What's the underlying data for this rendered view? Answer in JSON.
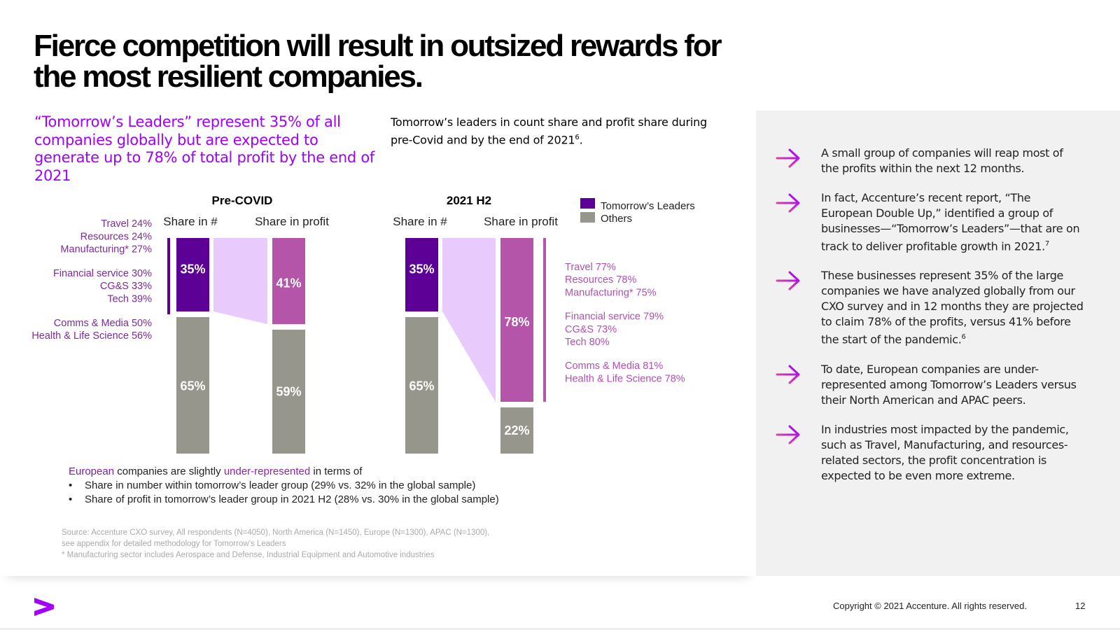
{
  "title": "Fierce competition will result in outsized rewards for the most resilient companies.",
  "headline": "“Tomorrow’s Leaders” represent 35% of all companies globally but are expected to generate up to 78% of total profit by the end of 2021",
  "chart_caption": {
    "text": "Tomorrow’s leaders in count share and profit share during pre-Covid and by the end of 2021",
    "footnote": "6",
    "suffix": "."
  },
  "colors": {
    "leaders": "#5c0096",
    "others": "#96968c",
    "profit_leaders": "#b455aa",
    "flow": "#e8cbfc",
    "accent": "#a100ff",
    "label_purple": "#7b2b9a",
    "label_pink": "#b050b0"
  },
  "chart_data": {
    "type": "bar",
    "subtype": "stacked-100-percent-with-flow",
    "legend": {
      "position": "top-right",
      "entries": [
        "Tomorrow’s Leaders",
        "Others"
      ]
    },
    "groups": [
      {
        "title": "Pre-COVID",
        "categories": [
          "Share in #",
          "Share in profit"
        ],
        "series": [
          {
            "name": "Tomorrow’s Leaders",
            "values": [
              35,
              41
            ],
            "labels": [
              "35%",
              "41%"
            ]
          },
          {
            "name": "Others",
            "values": [
              65,
              59
            ],
            "labels": [
              "65%",
              "59%"
            ]
          }
        ],
        "industry_breakdown": [
          [
            "Travel 24%",
            "Resources 24%",
            "Manufacturing* 27%"
          ],
          [
            "Financial service 30%",
            "CG&S 33%",
            "Tech 39%"
          ],
          [
            "Comms & Media 50%",
            "Health & Life Science 56%"
          ]
        ]
      },
      {
        "title": "2021 H2",
        "categories": [
          "Share in #",
          "Share in profit"
        ],
        "series": [
          {
            "name": "Tomorrow’s Leaders",
            "values": [
              35,
              78
            ],
            "labels": [
              "35%",
              "78%"
            ]
          },
          {
            "name": "Others",
            "values": [
              65,
              22
            ],
            "labels": [
              "65%",
              "22%"
            ]
          }
        ],
        "industry_breakdown": [
          [
            "Travel 77%",
            "Resources 78%",
            "Manufacturing* 75%"
          ],
          [
            "Financial service 79%",
            "CG&S 73%",
            "Tech 80%"
          ],
          [
            "Comms & Media 81%",
            "Health & Life Science 78%"
          ]
        ]
      }
    ],
    "ylim": [
      0,
      100
    ],
    "units": "%"
  },
  "note": {
    "lead_highlight": "European",
    "lead_mid": " companies are slightly ",
    "lead_highlight2": "under-represented",
    "lead_end": " in terms of",
    "items": [
      "Share in number within tomorrow’s leader group (29% vs. 32% in the global sample)",
      "Share of profit in tomorrow’s leader group in 2021 H2 (28% vs. 30% in the global sample)"
    ]
  },
  "source": [
    "Source: Accenture CXO survey, All respondents (N=4050), North America (N=1450), Europe (N=1300), APAC (N=1300),",
    "see appendix for detailed methodology for Tomorrow’s Leaders",
    "* Manufacturing sector includes Aerospace and Defense, Industrial Equipment and Automotive industries"
  ],
  "sidebar": {
    "arrow_icon": "right-arrow-icon",
    "bullets": [
      {
        "text": "A small group of companies will reap most of the profits within the next 12 months.",
        "footnote": ""
      },
      {
        "text": "In fact, Accenture’s recent report, “The European Double Up,” identified a group of businesses—“Tomorrow’s Leaders”—that are on track to deliver profitable growth in 2021.",
        "footnote": "7"
      },
      {
        "text": "These businesses represent 35% of the large companies we have analyzed globally from our CXO survey and in 12 months they are projected to claim 78% of the profits, versus 41% before the start of the pandemic.",
        "footnote": "6"
      },
      {
        "text": "To date, European companies are under-represented among Tomorrow’s Leaders versus their North American and APAC peers.",
        "footnote": ""
      },
      {
        "text": "In industries most impacted by the pandemic, such as Travel, Manufacturing, and resources-related sectors, the profit concentration is expected to be even more extreme.",
        "footnote": ""
      }
    ]
  },
  "footer": {
    "logo_icon": "accenture-chevron-logo",
    "copyright": "Copyright © 2021 Accenture. All rights reserved.",
    "page_number": "12"
  }
}
